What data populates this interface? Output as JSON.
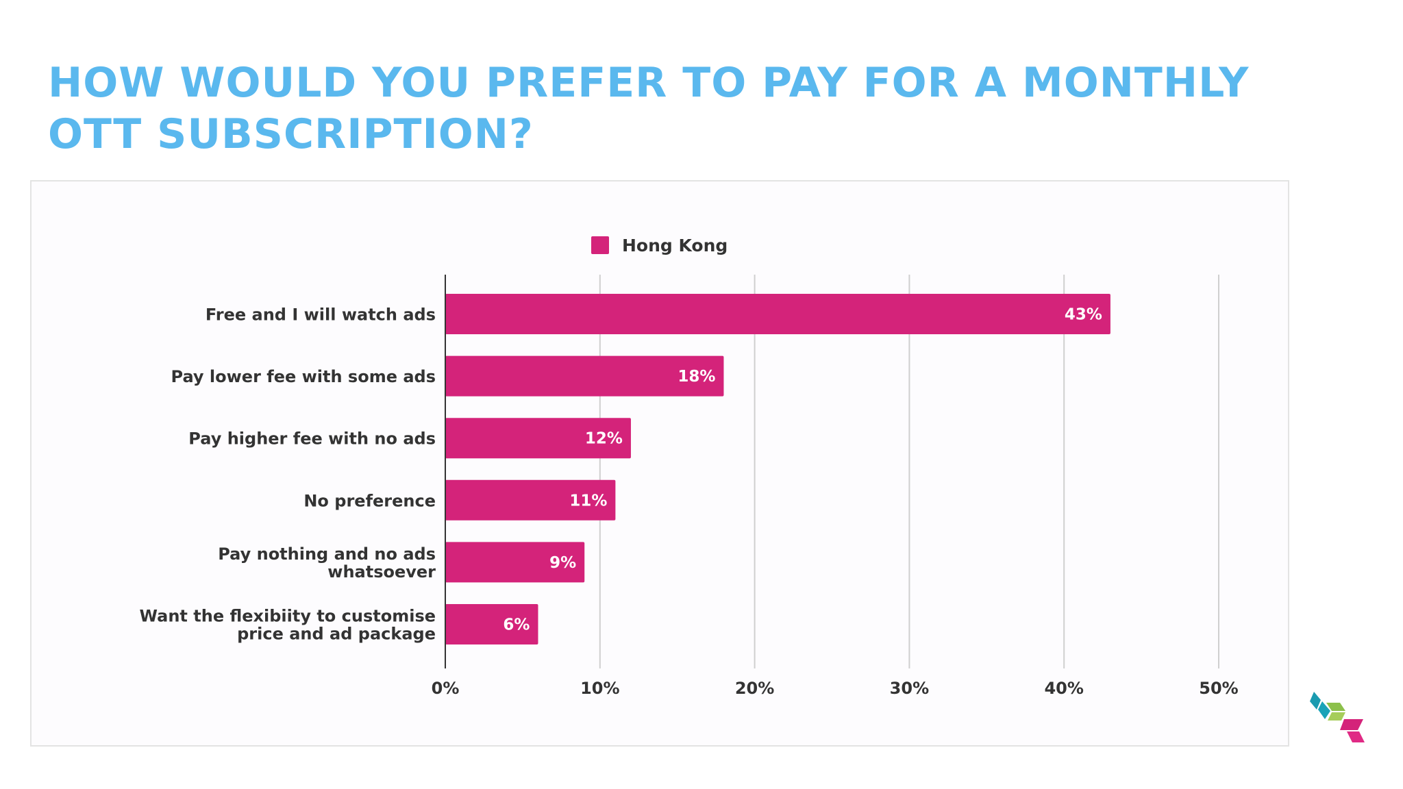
{
  "slide": {
    "title_line1": "HOW WOULD YOU PREFER TO PAY FOR A MONTHLY",
    "title_line2": "OTT SUBSCRIPTION?",
    "title_color": "#5ab8ee",
    "logo_icon": "stacked-chevron-logo-icon",
    "logo_colors": [
      "#1a9bb0",
      "#8cc04b",
      "#d4237a"
    ]
  },
  "chart_data": {
    "type": "bar",
    "orientation": "horizontal",
    "categories": [
      [
        "Free and I will watch ads"
      ],
      [
        "Pay lower fee with some ads"
      ],
      [
        "Pay higher fee with no ads"
      ],
      [
        "No preference"
      ],
      [
        "Pay nothing and no ads",
        "whatsoever"
      ],
      [
        "Want the flexibiity to customise",
        "price and ad package"
      ]
    ],
    "series": [
      {
        "name": "Hong Kong",
        "color": "#d4237a",
        "values": [
          43,
          18,
          12,
          11,
          9,
          6
        ],
        "data_labels": [
          "43%",
          "18%",
          "12%",
          "11%",
          "9%",
          "6%"
        ]
      }
    ],
    "xlim": [
      0,
      50
    ],
    "ticks": [
      0,
      10,
      20,
      30,
      40,
      50
    ],
    "tick_labels": [
      "0%",
      "10%",
      "20%",
      "30%",
      "40%",
      "50%"
    ],
    "grid": true,
    "legend_position": "top-center"
  }
}
